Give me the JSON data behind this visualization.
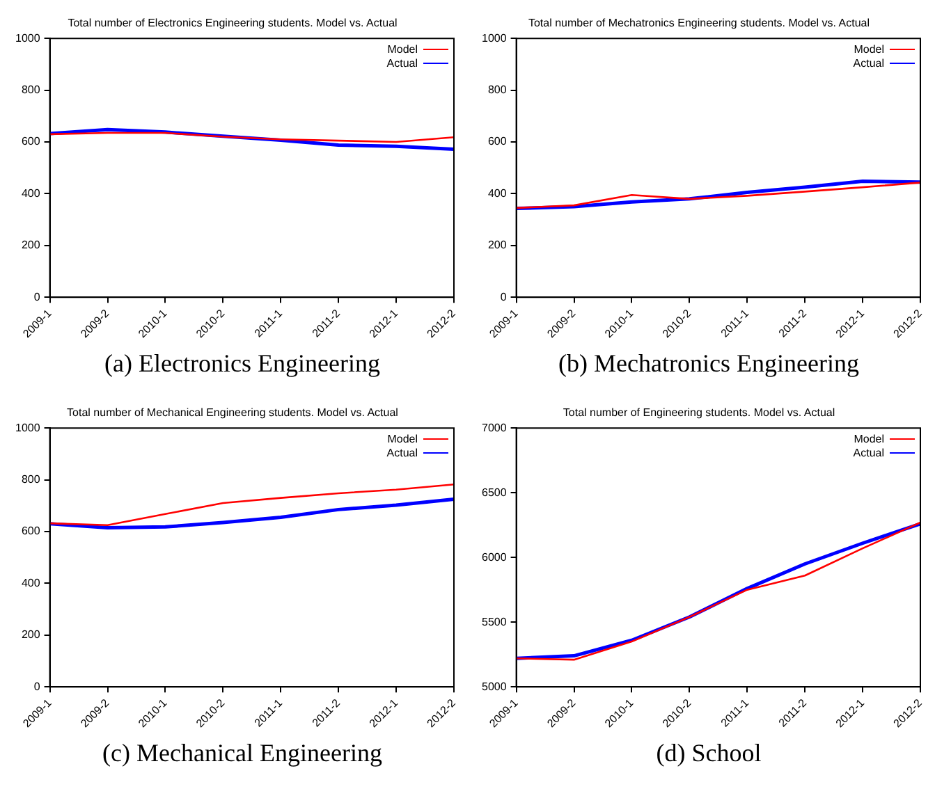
{
  "chart_data": [
    {
      "type": "line",
      "title": "Total number of Electronics Engineering students. Model vs. Actual",
      "categories": [
        "2009-1",
        "2009-2",
        "2010-1",
        "2010-2",
        "2011-1",
        "2011-2",
        "2012-1",
        "2012-2"
      ],
      "series": [
        {
          "name": "Model",
          "color": "#ff0000",
          "values": [
            630,
            635,
            635,
            620,
            610,
            605,
            600,
            618
          ]
        },
        {
          "name": "Actual",
          "color": "#0000ff",
          "values": [
            632,
            648,
            638,
            622,
            607,
            588,
            583,
            572
          ]
        }
      ],
      "ylim": [
        0,
        1000
      ],
      "yticks": [
        0,
        200,
        400,
        600,
        800,
        1000
      ],
      "grid": false,
      "legend": "top right",
      "marker": "none",
      "line_style": "solid",
      "annotations": [
        "(a) Electronics Engineering"
      ]
    },
    {
      "type": "line",
      "title": "Total number of Mechatronics Engineering students. Model vs. Actual",
      "categories": [
        "2009-1",
        "2009-2",
        "2010-1",
        "2010-2",
        "2011-1",
        "2011-2",
        "2012-1",
        "2012-2"
      ],
      "series": [
        {
          "name": "Model",
          "color": "#ff0000",
          "values": [
            345,
            355,
            395,
            380,
            392,
            408,
            425,
            443
          ]
        },
        {
          "name": "Actual",
          "color": "#0000ff",
          "values": [
            343,
            350,
            368,
            380,
            405,
            425,
            448,
            445
          ]
        }
      ],
      "ylim": [
        0,
        1000
      ],
      "yticks": [
        0,
        200,
        400,
        600,
        800,
        1000
      ],
      "grid": false,
      "legend": "top right",
      "marker": "none",
      "line_style": "solid",
      "annotations": [
        "(b) Mechatronics Engineering"
      ]
    },
    {
      "type": "line",
      "title": "Total number of Mechanical Engineering students. Model vs. Actual",
      "categories": [
        "2009-1",
        "2009-2",
        "2010-1",
        "2010-2",
        "2011-1",
        "2011-2",
        "2012-1",
        "2012-2"
      ],
      "series": [
        {
          "name": "Model",
          "color": "#ff0000",
          "values": [
            632,
            625,
            668,
            710,
            730,
            748,
            762,
            782
          ]
        },
        {
          "name": "Actual",
          "color": "#0000ff",
          "values": [
            630,
            615,
            618,
            635,
            655,
            685,
            702,
            725
          ]
        }
      ],
      "ylim": [
        0,
        1000
      ],
      "yticks": [
        0,
        200,
        400,
        600,
        800,
        1000
      ],
      "grid": false,
      "legend": "top right",
      "marker": "none",
      "line_style": "solid",
      "annotations": [
        "(c) Mechanical Engineering"
      ]
    },
    {
      "type": "line",
      "title": "Total number of Engineering students. Model vs. Actual",
      "categories": [
        "2009-1",
        "2009-2",
        "2010-1",
        "2010-2",
        "2011-1",
        "2011-2",
        "2012-1",
        "2012-2"
      ],
      "series": [
        {
          "name": "Model",
          "color": "#ff0000",
          "values": [
            5220,
            5210,
            5350,
            5540,
            5750,
            5860,
            6070,
            6270
          ]
        },
        {
          "name": "Actual",
          "color": "#0000ff",
          "values": [
            5220,
            5240,
            5360,
            5540,
            5760,
            5950,
            6110,
            6260
          ]
        }
      ],
      "ylim": [
        5000,
        7000
      ],
      "yticks": [
        5000,
        5500,
        6000,
        6500,
        7000
      ],
      "grid": false,
      "legend": "top right",
      "marker": "none",
      "line_style": "solid",
      "annotations": [
        "(d) School"
      ]
    }
  ]
}
